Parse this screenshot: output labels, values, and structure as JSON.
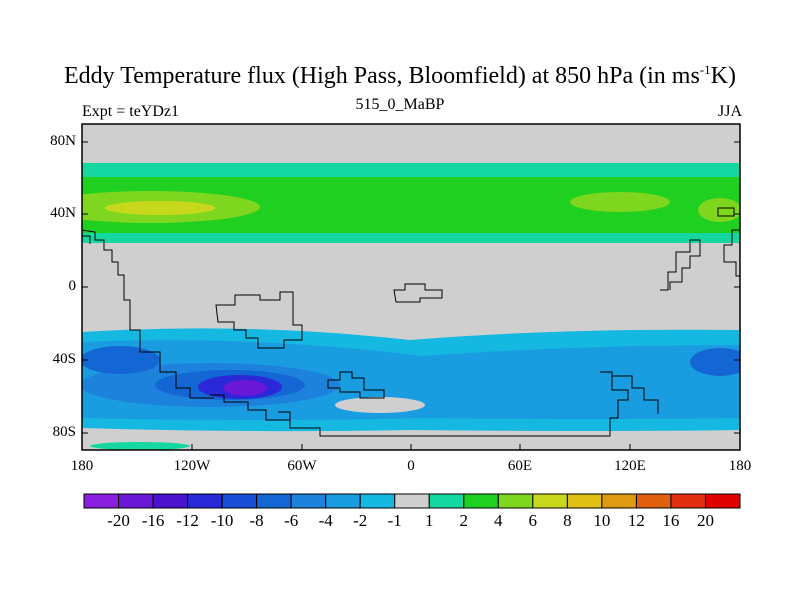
{
  "title": {
    "main": "Eddy Temperature flux (High Pass, Bloomfield) at 850 hPa (in ms",
    "sup": "-1",
    "tail": "K)"
  },
  "subtitle": {
    "left": "Expt = teYDz1",
    "center": "515_0_MaBP",
    "right": "JJA"
  },
  "axes": {
    "y_ticks": [
      "80N",
      "40N",
      "0",
      "40S",
      "80S"
    ],
    "y_values": [
      80,
      40,
      0,
      -40,
      -80
    ],
    "x_ticks": [
      "180",
      "120W",
      "60W",
      "0",
      "60E",
      "120E",
      "180"
    ],
    "x_values": [
      -180,
      -120,
      -60,
      0,
      60,
      120,
      180
    ],
    "lon_range": [
      -180,
      180
    ],
    "lat_range": [
      -90,
      90
    ]
  },
  "colorbar": {
    "labels": [
      "-20",
      "-16",
      "-12",
      "-10",
      "-8",
      "-6",
      "-4",
      "-2",
      "-1",
      "1",
      "2",
      "4",
      "6",
      "8",
      "10",
      "12",
      "16",
      "20"
    ],
    "colors": [
      "#8a1fe0",
      "#6a17d6",
      "#4a12cc",
      "#2a28d8",
      "#1a4ed8",
      "#1466d4",
      "#1c82dc",
      "#1a9ce0",
      "#14b8e0",
      "#cfcfcf",
      "#14d8a0",
      "#20d020",
      "#7fd61e",
      "#c8d81c",
      "#e0c014",
      "#e09a12",
      "#e06010",
      "#e03010",
      "#e00000"
    ]
  },
  "colors": {
    "land_outline": "#000000",
    "missing": "#cfcfcf"
  }
}
